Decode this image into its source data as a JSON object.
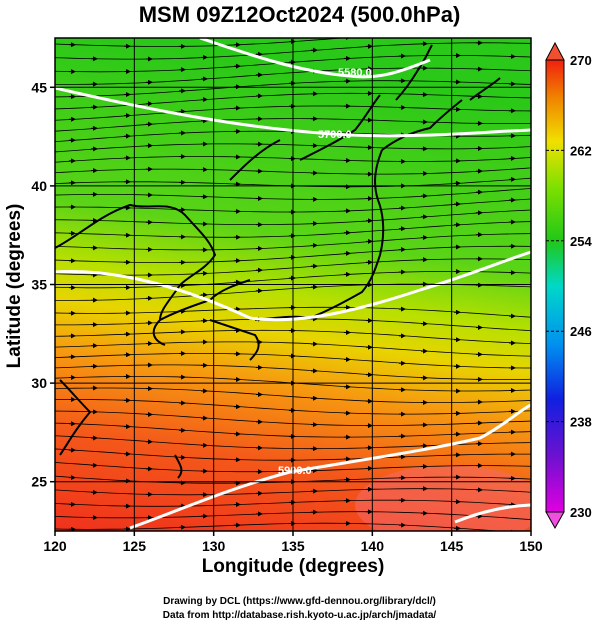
{
  "title": "MSM 09Z12Oct2024 (500.0hPa)",
  "x_axis": {
    "label": "Longitude (degrees)",
    "range": [
      120,
      150
    ],
    "ticks": [
      "120",
      "125",
      "130",
      "135",
      "140",
      "145",
      "150"
    ]
  },
  "y_axis": {
    "label": "Latitude  (degrees)",
    "range": [
      22.5,
      47.5
    ],
    "ticks": [
      "25",
      "30",
      "35",
      "40",
      "45"
    ]
  },
  "colorbar": {
    "range": [
      230,
      270
    ],
    "ticks": [
      "230",
      "238",
      "246",
      "254",
      "262",
      "270"
    ]
  },
  "contours": [
    {
      "label": "5580.0"
    },
    {
      "label": "5700.0"
    },
    {
      "label": "5900.0"
    }
  ],
  "credits": {
    "line1": "Drawing by DCL (https://www.gfd-dennou.org/library/dcl/)",
    "line2": "Data from http://database.rish.kyoto-u.ac.jp/arch/jmadata/"
  },
  "colors": {
    "warm": "#f03a1e",
    "mid": "#f2e600",
    "cool": "#3ccf14",
    "contour": "#ffffff"
  },
  "grid": true,
  "coastlines": true
}
